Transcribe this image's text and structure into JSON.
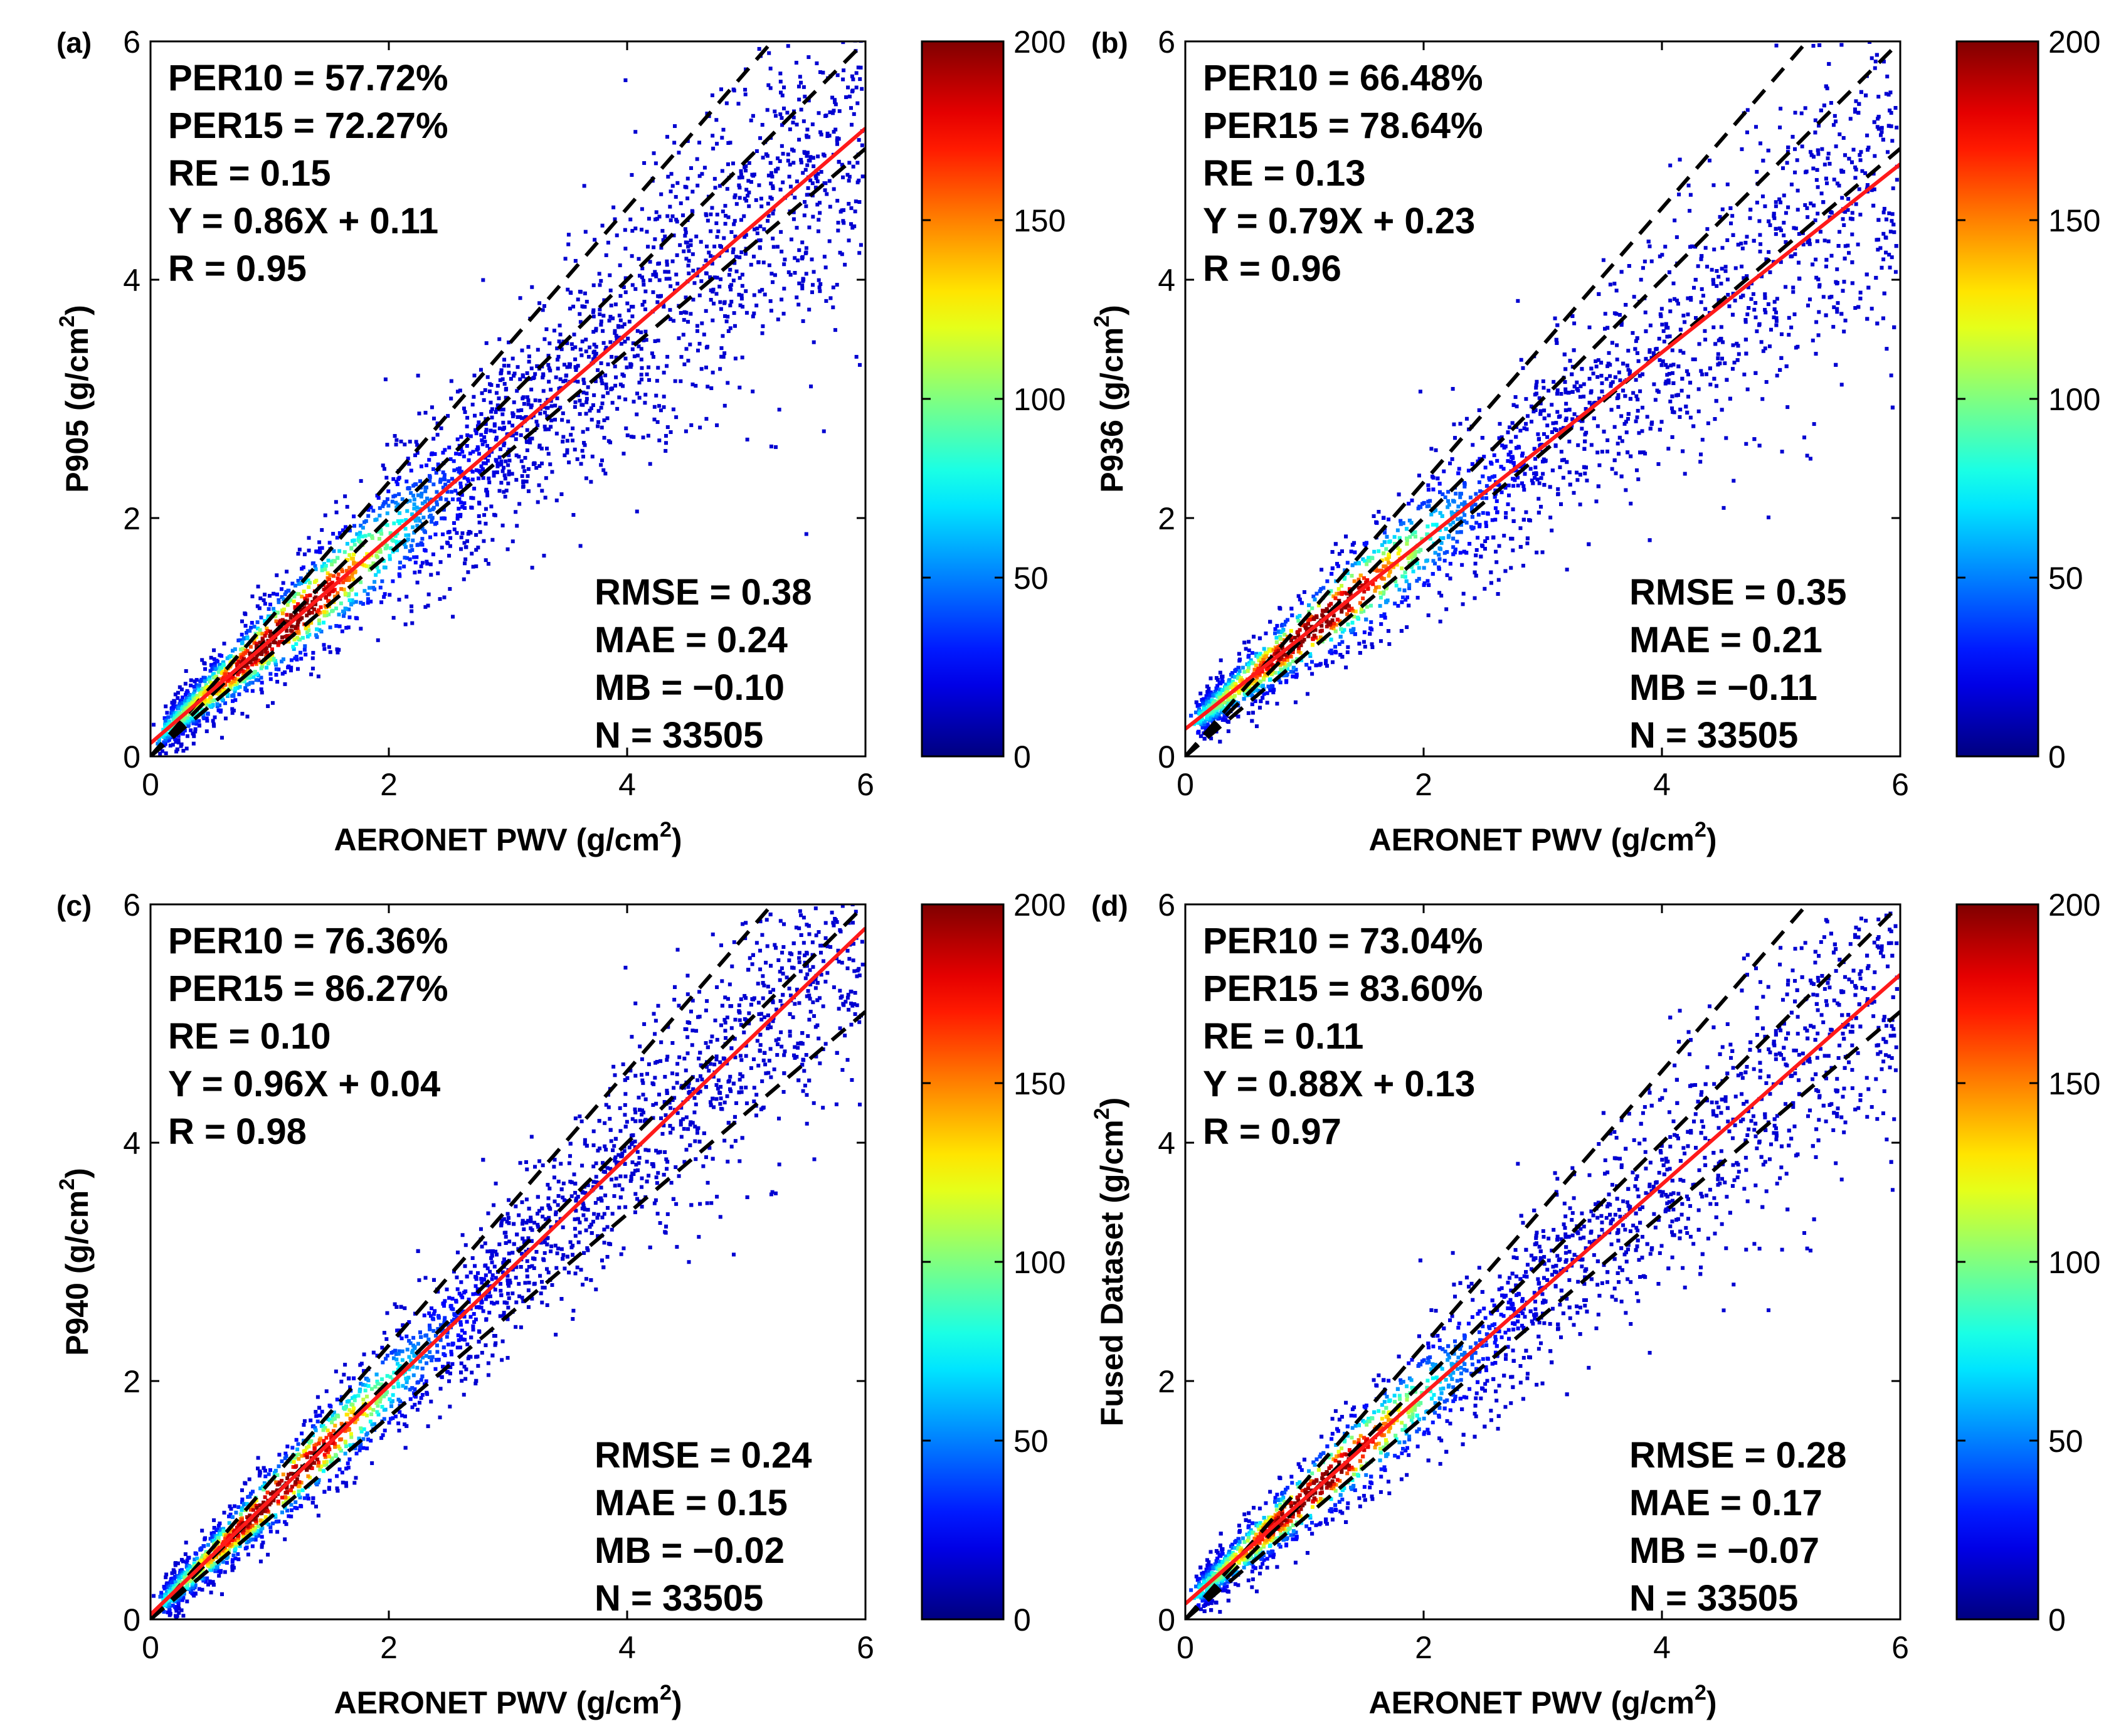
{
  "chart_data": [
    {
      "type": "scatter",
      "panel_label": "(a)",
      "xlabel": "AERONET PWV (g/cm",
      "xlabel_sup": "2",
      "xlabel_end": ")",
      "ylabel": "P905 (g/cm",
      "ylabel_sup": "2",
      "ylabel_end": ")",
      "xlim": [
        0,
        6
      ],
      "ylim": [
        0,
        6
      ],
      "xticks": [
        "0",
        "2",
        "4",
        "6"
      ],
      "yticks": [
        "0",
        "2",
        "4",
        "6"
      ],
      "fit": {
        "slope": 0.86,
        "intercept": 0.11
      },
      "envelope_ratios": [
        0.85,
        1.0,
        1.15
      ],
      "stats_top": [
        "PER10 = 57.72%",
        "PER15 = 72.27%",
        "RE = 0.15",
        "Y = 0.86X + 0.11",
        "R = 0.95"
      ],
      "stats_bottom": [
        "RMSE = 0.38",
        "MAE = 0.24",
        "MB = −0.10",
        "N = 33505"
      ],
      "density": {
        "spread": 0.12,
        "points": 2800
      }
    },
    {
      "type": "scatter",
      "panel_label": "(b)",
      "xlabel": "AERONET PWV (g/cm",
      "xlabel_sup": "2",
      "xlabel_end": ")",
      "ylabel": "P936 (g/cm",
      "ylabel_sup": "2",
      "ylabel_end": ")",
      "xlim": [
        0,
        6
      ],
      "ylim": [
        0,
        6
      ],
      "xticks": [
        "0",
        "2",
        "4",
        "6"
      ],
      "yticks": [
        "0",
        "2",
        "4",
        "6"
      ],
      "fit": {
        "slope": 0.79,
        "intercept": 0.23
      },
      "envelope_ratios": [
        0.85,
        1.0,
        1.15
      ],
      "stats_top": [
        "PER10 = 66.48%",
        "PER15 = 78.64%",
        "RE = 0.13",
        "Y = 0.79X + 0.23",
        "R = 0.96"
      ],
      "stats_bottom": [
        "RMSE = 0.35",
        "MAE = 0.21",
        "MB = −0.11",
        "N = 33505"
      ],
      "density": {
        "spread": 0.11,
        "points": 2800
      }
    },
    {
      "type": "scatter",
      "panel_label": "(c)",
      "xlabel": "AERONET PWV (g/cm",
      "xlabel_sup": "2",
      "xlabel_end": ")",
      "ylabel": "P940 (g/cm",
      "ylabel_sup": "2",
      "ylabel_end": ")",
      "xlim": [
        0,
        6
      ],
      "ylim": [
        0,
        6
      ],
      "xticks": [
        "0",
        "2",
        "4",
        "6"
      ],
      "yticks": [
        "0",
        "2",
        "4",
        "6"
      ],
      "fit": {
        "slope": 0.96,
        "intercept": 0.04
      },
      "envelope_ratios": [
        0.85,
        1.0,
        1.15
      ],
      "stats_top": [
        "PER10 = 76.36%",
        "PER15 = 86.27%",
        "RE = 0.10",
        "Y = 0.96X + 0.04",
        "R = 0.98"
      ],
      "stats_bottom": [
        "RMSE = 0.24",
        "MAE = 0.15",
        "MB = −0.02",
        "N = 33505"
      ],
      "density": {
        "spread": 0.085,
        "points": 2800
      }
    },
    {
      "type": "scatter",
      "panel_label": "(d)",
      "xlabel": "AERONET PWV (g/cm",
      "xlabel_sup": "2",
      "xlabel_end": ")",
      "ylabel": "Fused Dataset (g/cm",
      "ylabel_sup": "2",
      "ylabel_end": ")",
      "xlim": [
        0,
        6
      ],
      "ylim": [
        0,
        6
      ],
      "xticks": [
        "0",
        "2",
        "4",
        "6"
      ],
      "yticks": [
        "0",
        "2",
        "4",
        "6"
      ],
      "fit": {
        "slope": 0.88,
        "intercept": 0.13
      },
      "envelope_ratios": [
        0.85,
        1.0,
        1.15
      ],
      "stats_top": [
        "PER10 = 73.04%",
        "PER15 = 83.60%",
        "RE = 0.11",
        "Y = 0.88X + 0.13",
        "R = 0.97"
      ],
      "stats_bottom": [
        "RMSE = 0.28",
        "MAE = 0.17",
        "MB = −0.07",
        "N = 33505"
      ],
      "density": {
        "spread": 0.095,
        "points": 2800
      }
    }
  ],
  "colorbar": {
    "min": 0,
    "max": 200,
    "ticks": [
      "0",
      "50",
      "100",
      "150",
      "200"
    ],
    "colormap": "jet"
  },
  "colors": {
    "fit_line": "#ff1a1a",
    "envelope_line": "#000000",
    "axis": "#000000"
  }
}
